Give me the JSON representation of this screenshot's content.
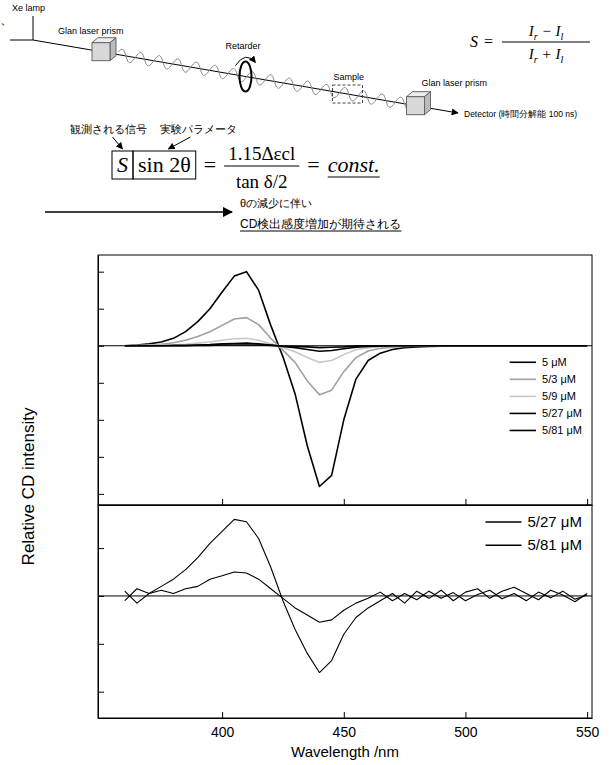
{
  "diagram": {
    "corner_mark": "、",
    "light_source": "Xe lamp",
    "polarizer": "Glan laser prism",
    "retarder": "Retarder",
    "sample": "Sample",
    "analyzer": "Glan laser prism",
    "detector": "Detector (時間分解能 100 ns)",
    "formula": {
      "lhs": "S",
      "relation": "=",
      "numerator": [
        {
          "text": "I",
          "sub": "r"
        },
        {
          "text": " − "
        },
        {
          "text": "I",
          "sub": "l"
        }
      ],
      "denominator": [
        {
          "text": "I",
          "sub": "r"
        },
        {
          "text": " + "
        },
        {
          "text": "I",
          "sub": "l"
        }
      ]
    }
  },
  "equation": {
    "observed_label": "観測される信号",
    "parameter_label": "実験パラメータ",
    "observed": "S",
    "parameter": "sin 2θ",
    "relation": "=",
    "numerator": "1.15Δεcl",
    "denominator": "tan δ/2",
    "result": "const.",
    "note_line1": "θの減少に伴い",
    "note_line2": "CD検出感度増加が期待される"
  },
  "chart_data": [
    {
      "type": "line",
      "y_label": "Relative CD intensity",
      "x": [
        360,
        365,
        370,
        375,
        380,
        385,
        390,
        395,
        400,
        405,
        410,
        415,
        420,
        425,
        430,
        435,
        440,
        445,
        450,
        455,
        460,
        465,
        470,
        475,
        480,
        485,
        490,
        495,
        500,
        505,
        510,
        515,
        520,
        525,
        530,
        535,
        540,
        545,
        550
      ],
      "series": [
        {
          "name": "5 μM",
          "color": "#000000",
          "values": [
            0,
            0.02,
            0.05,
            0.1,
            0.2,
            0.38,
            0.65,
            1,
            1.45,
            1.88,
            2,
            1.5,
            0.55,
            -0.3,
            -1.3,
            -2.7,
            -3.8,
            -3.5,
            -2,
            -0.9,
            -0.4,
            -0.2,
            -0.1,
            -0.05,
            -0.03,
            -0.02,
            -0.01,
            0,
            0,
            0,
            0,
            0,
            0,
            0,
            0,
            0,
            0,
            0,
            0
          ]
        },
        {
          "name": "5/3 μM",
          "color": "#a0a0a0",
          "values": [
            0,
            0.01,
            0.02,
            0.04,
            0.08,
            0.15,
            0.25,
            0.38,
            0.55,
            0.72,
            0.76,
            0.57,
            0.2,
            -0.12,
            -0.45,
            -0.95,
            -1.32,
            -1.2,
            -0.7,
            -0.32,
            -0.14,
            -0.07,
            -0.04,
            -0.02,
            -0.01,
            0,
            0,
            0,
            0,
            0,
            0,
            0,
            0,
            0,
            0,
            0,
            0,
            0,
            0
          ]
        },
        {
          "name": "5/9 μM",
          "color": "#c8c8c8",
          "values": [
            0,
            0,
            0.01,
            0.01,
            0.02,
            0.04,
            0.07,
            0.1,
            0.15,
            0.19,
            0.2,
            0.15,
            0.05,
            -0.05,
            -0.16,
            -0.32,
            -0.45,
            -0.4,
            -0.24,
            -0.11,
            -0.05,
            -0.02,
            -0.01,
            0,
            0,
            0,
            0,
            0,
            0,
            0,
            0,
            0,
            0,
            0,
            0,
            0,
            0,
            0,
            0
          ]
        },
        {
          "name": "5/27 μM",
          "color": "#000000",
          "values": [
            0,
            0,
            0,
            0,
            0.01,
            0.01,
            0.02,
            0.03,
            0.05,
            0.06,
            0.07,
            0.05,
            0.02,
            -0.02,
            -0.05,
            -0.1,
            -0.15,
            -0.13,
            -0.08,
            -0.04,
            -0.02,
            -0.01,
            0,
            0,
            0,
            0,
            0,
            0,
            0,
            0,
            0,
            0,
            0,
            0,
            0,
            0,
            0,
            0,
            0
          ]
        },
        {
          "name": "5/81 μM",
          "color": "#000000",
          "values": [
            0,
            0,
            0,
            0,
            0,
            0,
            0.01,
            0.01,
            0.02,
            0.02,
            0.02,
            0.02,
            0.01,
            -0.01,
            -0.02,
            -0.03,
            -0.05,
            -0.04,
            -0.03,
            -0.01,
            0,
            0,
            0,
            0,
            0,
            0,
            0,
            0,
            0,
            0,
            0,
            0,
            0,
            0,
            0,
            0,
            0,
            0,
            0
          ]
        }
      ],
      "xlim": [
        349,
        552
      ],
      "ylim": [
        -4.3,
        2.45
      ],
      "xticks": [
        400,
        450,
        500,
        550
      ],
      "yticks": [
        -4,
        -3,
        -2,
        -1,
        0,
        1,
        2
      ],
      "tick_labels": false,
      "legend": "right"
    },
    {
      "type": "line",
      "x_label": "Wavelength /nm",
      "x": [
        360,
        365,
        370,
        375,
        380,
        385,
        390,
        395,
        400,
        405,
        410,
        415,
        420,
        425,
        430,
        435,
        440,
        445,
        450,
        455,
        460,
        465,
        470,
        475,
        480,
        485,
        490,
        495,
        500,
        505,
        510,
        515,
        520,
        525,
        530,
        535,
        540,
        545,
        550
      ],
      "series": [
        {
          "name": "5/27 μM",
          "color": "#000000",
          "values": [
            -0.1,
            0.15,
            0.05,
            0.2,
            0.35,
            0.55,
            0.8,
            1.1,
            1.35,
            1.6,
            1.55,
            1.2,
            0.6,
            -0.1,
            -0.7,
            -1.2,
            -1.6,
            -1.35,
            -0.8,
            -0.45,
            -0.25,
            -0.1,
            0.05,
            -0.15,
            0.1,
            -0.05,
            0.12,
            -0.1,
            0.08,
            0.15,
            -0.05,
            0.1,
            0.18,
            0.05,
            -0.08,
            0.12,
            0.02,
            -0.12,
            0.05
          ]
        },
        {
          "name": "5/81 μM",
          "color": "#000000",
          "values": [
            0.1,
            -0.15,
            0.05,
            0.12,
            0.05,
            0.15,
            0.2,
            0.35,
            0.42,
            0.5,
            0.48,
            0.35,
            0.15,
            -0.05,
            -0.25,
            -0.4,
            -0.55,
            -0.5,
            -0.3,
            -0.15,
            -0.05,
            0.08,
            -0.1,
            0.05,
            -0.08,
            0.1,
            -0.05,
            0.07,
            -0.1,
            0.03,
            0.12,
            -0.06,
            0.05,
            -0.1,
            0.08,
            -0.04,
            0.1,
            -0.07,
            0.02
          ]
        }
      ],
      "xlim": [
        349,
        552
      ],
      "ylim": [
        -2.55,
        1.9
      ],
      "xticks": [
        400,
        450,
        500,
        550
      ],
      "yticks": [
        -2,
        -1,
        0,
        1
      ],
      "tick_labels": "x",
      "legend": "upper right"
    }
  ]
}
